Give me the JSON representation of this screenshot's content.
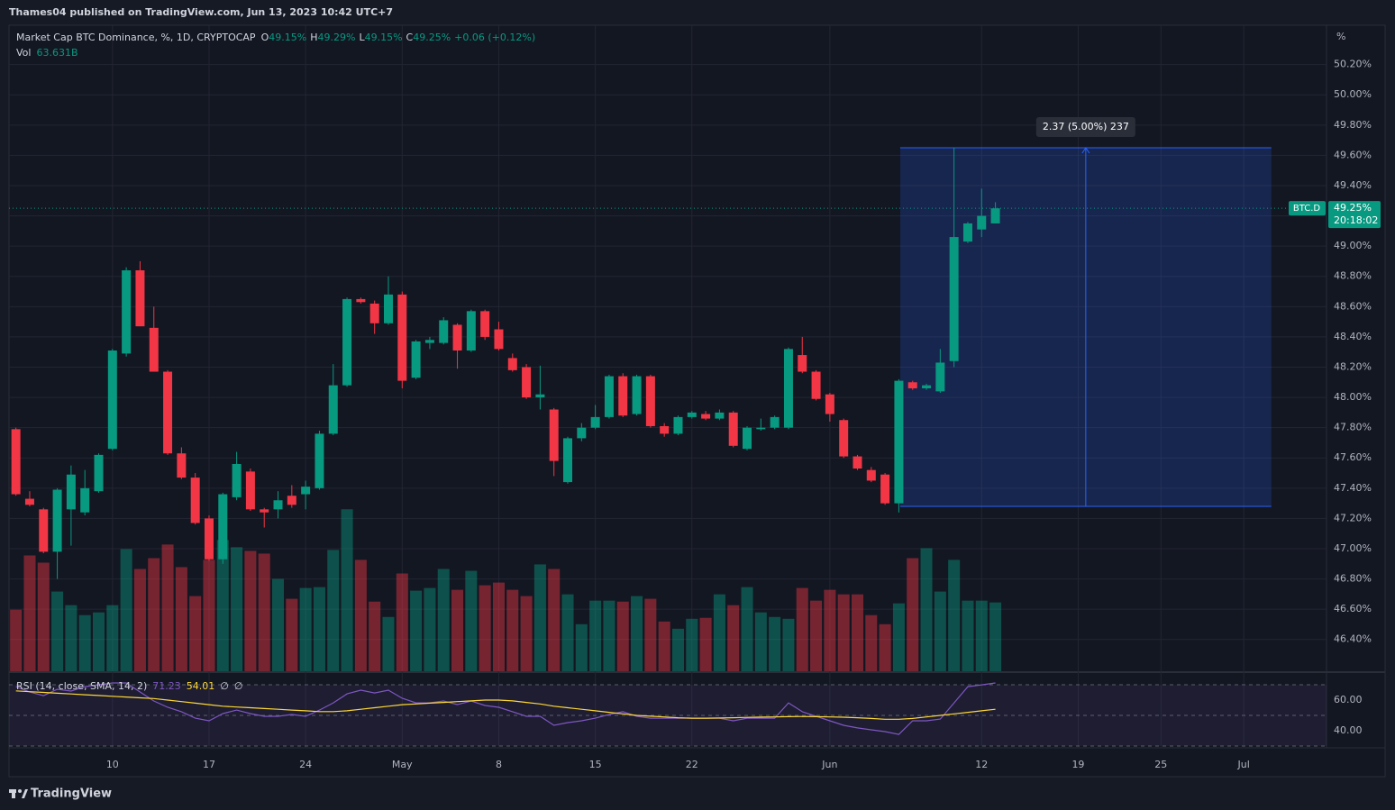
{
  "header": {
    "publisher": "Thames04 published on TradingView.com, Jun 13, 2023 10:42 UTC+7"
  },
  "footer": {
    "brand": "TradingView"
  },
  "chart_data": {
    "type": "candlestick",
    "title": "Market Cap BTC Dominance, %, 1D, CRYPTOCAP",
    "ohlc_legend": [
      {
        "key": "O",
        "value": "49.15%"
      },
      {
        "key": "H",
        "value": "49.29%"
      },
      {
        "key": "L",
        "value": "49.15%"
      },
      {
        "key": "C",
        "value": "49.25%"
      }
    ],
    "change": "+0.06 (+0.12%)",
    "y_unit": "%",
    "open": [
      47.79,
      47.33,
      47.26,
      46.98,
      47.26,
      47.24,
      47.38,
      47.66,
      48.29,
      48.84,
      48.46,
      48.17,
      47.63,
      47.47,
      47.2,
      46.93,
      47.34,
      47.51,
      47.26,
      47.26,
      47.35,
      47.36,
      47.4,
      47.76,
      48.08,
      48.65,
      48.62,
      48.49,
      48.68,
      48.13,
      48.36,
      48.36,
      48.48,
      48.31,
      48.57,
      48.45,
      48.26,
      48.2,
      48.0,
      47.92,
      47.44,
      47.73,
      47.8,
      47.87,
      48.14,
      47.89,
      48.14,
      47.81,
      47.76,
      47.87,
      47.89,
      47.86,
      47.9,
      47.66,
      47.79,
      47.8,
      47.8,
      48.28,
      48.17,
      48.02,
      47.85,
      47.61,
      47.52,
      47.49,
      47.3,
      48.1,
      48.06,
      48.04,
      48.24,
      49.03,
      49.11,
      49.15
    ],
    "high": [
      47.8,
      47.38,
      47.27,
      47.4,
      47.55,
      47.52,
      47.63,
      48.32,
      48.86,
      48.9,
      48.6,
      48.18,
      47.67,
      47.5,
      47.22,
      47.37,
      47.64,
      47.53,
      47.27,
      47.38,
      47.42,
      47.45,
      47.78,
      48.22,
      48.66,
      48.66,
      48.64,
      48.8,
      48.7,
      48.38,
      48.4,
      48.53,
      48.49,
      48.58,
      48.58,
      48.5,
      48.29,
      48.22,
      48.21,
      47.93,
      47.74,
      47.83,
      47.95,
      48.15,
      48.16,
      48.15,
      48.15,
      47.83,
      47.88,
      47.91,
      47.91,
      47.92,
      47.91,
      47.81,
      47.86,
      47.88,
      48.33,
      48.4,
      48.18,
      48.03,
      47.86,
      47.62,
      47.54,
      47.5,
      48.12,
      48.11,
      48.09,
      48.32,
      49.65,
      49.16,
      49.38,
      49.29
    ],
    "low": [
      47.35,
      47.28,
      46.97,
      46.8,
      47.02,
      47.22,
      47.37,
      47.65,
      48.27,
      48.47,
      48.17,
      47.62,
      47.46,
      47.16,
      46.92,
      46.9,
      47.32,
      47.25,
      47.14,
      47.2,
      47.27,
      47.26,
      47.39,
      47.75,
      48.07,
      48.62,
      48.42,
      48.48,
      48.06,
      48.12,
      48.32,
      48.35,
      48.19,
      48.3,
      48.38,
      48.31,
      48.17,
      47.99,
      47.92,
      47.48,
      47.43,
      47.71,
      47.79,
      47.86,
      47.87,
      47.88,
      47.8,
      47.74,
      47.75,
      47.86,
      47.85,
      47.85,
      47.67,
      47.65,
      47.78,
      47.79,
      47.79,
      48.16,
      47.98,
      47.84,
      47.6,
      47.52,
      47.44,
      47.29,
      47.24,
      48.05,
      48.05,
      48.03,
      48.2,
      49.02,
      49.06,
      49.15
    ],
    "close": [
      47.36,
      47.29,
      46.98,
      47.39,
      47.49,
      47.4,
      47.62,
      48.31,
      48.84,
      48.47,
      48.17,
      47.63,
      47.47,
      47.17,
      46.93,
      47.36,
      47.56,
      47.26,
      47.24,
      47.32,
      47.29,
      47.41,
      47.76,
      48.08,
      48.65,
      48.63,
      48.49,
      48.68,
      48.11,
      48.37,
      48.38,
      48.51,
      48.31,
      48.57,
      48.4,
      48.32,
      48.18,
      48.0,
      48.02,
      47.58,
      47.73,
      47.8,
      47.87,
      48.14,
      47.88,
      48.14,
      47.81,
      47.76,
      47.87,
      47.9,
      47.86,
      47.9,
      47.68,
      47.8,
      47.8,
      47.87,
      48.32,
      48.17,
      47.99,
      47.89,
      47.61,
      47.53,
      47.45,
      47.3,
      48.11,
      48.06,
      48.08,
      48.23,
      49.06,
      49.15,
      49.2,
      49.25
    ],
    "up_color": "#089981",
    "down_color": "#f23645",
    "xlim": [
      -0.5,
      95
    ],
    "xticks": [
      {
        "value": 7,
        "label": "10"
      },
      {
        "value": 14,
        "label": "17"
      },
      {
        "value": 21,
        "label": "24"
      },
      {
        "value": 28,
        "label": "May"
      },
      {
        "value": 35,
        "label": "8"
      },
      {
        "value": 42,
        "label": "15"
      },
      {
        "value": 49,
        "label": "22"
      },
      {
        "value": 59,
        "label": "Jun"
      },
      {
        "value": 70,
        "label": "12"
      },
      {
        "value": 77,
        "label": "19"
      },
      {
        "value": 83,
        "label": "25"
      },
      {
        "value": 89,
        "label": "Jul"
      }
    ],
    "ylim": [
      46.19,
      50.46
    ],
    "yticks": [
      {
        "value": 46.4,
        "label": "46.40%"
      },
      {
        "value": 46.6,
        "label": "46.60%"
      },
      {
        "value": 46.8,
        "label": "46.80%"
      },
      {
        "value": 47.0,
        "label": "47.00%"
      },
      {
        "value": 47.2,
        "label": "47.20%"
      },
      {
        "value": 47.4,
        "label": "47.40%"
      },
      {
        "value": 47.6,
        "label": "47.60%"
      },
      {
        "value": 47.8,
        "label": "47.80%"
      },
      {
        "value": 48.0,
        "label": "48.00%"
      },
      {
        "value": 48.2,
        "label": "48.20%"
      },
      {
        "value": 48.4,
        "label": "48.40%"
      },
      {
        "value": 48.6,
        "label": "48.60%"
      },
      {
        "value": 48.8,
        "label": "48.80%"
      },
      {
        "value": 49.0,
        "label": "49.00%"
      },
      {
        "value": 49.2,
        "label": "49.20%"
      },
      {
        "value": 49.4,
        "label": "49.40%"
      },
      {
        "value": 49.6,
        "label": "49.60%"
      },
      {
        "value": 49.8,
        "label": "49.80%"
      },
      {
        "value": 50.0,
        "label": "50.00%"
      },
      {
        "value": 50.2,
        "label": "50.20%"
      }
    ],
    "grid": true,
    "last_price": {
      "symbol": "BTC.D",
      "value": 49.25,
      "label": "49.25%",
      "countdown": "20:18:02"
    },
    "measure": {
      "from": 47.28,
      "to": 49.65,
      "x_start": 64.1,
      "x_end": 91,
      "label": "2.37 (5.00%) 237",
      "color": "#2962ff"
    },
    "volume": {
      "type": "bar",
      "name": "Vol",
      "last_label": "63.631B",
      "values": [
        56.9,
        107.1,
        100.4,
        73.7,
        61.1,
        51.9,
        54.4,
        61.1,
        113.0,
        94.6,
        104.6,
        117.2,
        96.3,
        69.5,
        103.0,
        121.4,
        114.7,
        111.3,
        108.8,
        85.4,
        67.0,
        77.0,
        77.8,
        112.2,
        149.8,
        103.0,
        64.4,
        50.2,
        90.4,
        74.5,
        77.0,
        94.6,
        75.3,
        92.9,
        79.5,
        82.0,
        75.3,
        69.5,
        98.8,
        94.6,
        71.1,
        43.5,
        65.3,
        65.3,
        64.4,
        69.5,
        67.0,
        46.0,
        39.3,
        48.5,
        49.4,
        71.1,
        61.1,
        77.8,
        54.4,
        50.2,
        48.5,
        77.0,
        65.3,
        75.3,
        71.1,
        71.1,
        51.9,
        43.5,
        62.8,
        104.6,
        113.8,
        73.7,
        103.0,
        65.3,
        65.3,
        63.631
      ]
    },
    "rsi": {
      "type": "line",
      "name": "RSI (14, close, SMA, 14, 2)",
      "na_labels": [
        "∅",
        "∅"
      ],
      "ylim": [
        28.8,
        77.1
      ],
      "yticks": [
        {
          "value": 40,
          "label": "40.00"
        },
        {
          "value": 60,
          "label": "60.00"
        }
      ],
      "bands": [
        30,
        50,
        70
      ],
      "series": [
        {
          "color": "#7e57c2",
          "value_label": "71.23",
          "values": [
            68.8,
            65.3,
            62.9,
            67.1,
            65.9,
            68.8,
            70.0,
            71.2,
            71.2,
            65.3,
            59.4,
            55.3,
            52.4,
            48.2,
            46.5,
            51.2,
            53.5,
            51.2,
            49.4,
            49.4,
            50.6,
            49.4,
            53.5,
            58.2,
            64.1,
            66.5,
            64.7,
            66.5,
            61.2,
            58.2,
            58.2,
            59.4,
            57.1,
            59.4,
            56.5,
            55.3,
            52.4,
            49.4,
            49.4,
            43.5,
            45.3,
            46.5,
            48.2,
            50.6,
            52.4,
            49.4,
            48.2,
            48.2,
            48.2,
            48.2,
            48.2,
            48.2,
            46.5,
            48.2,
            48.2,
            48.2,
            58.2,
            52.4,
            49.4,
            46.5,
            43.5,
            41.8,
            40.6,
            39.4,
            37.6,
            46.5,
            46.5,
            47.6,
            58.2,
            68.8,
            70.0,
            71.23
          ]
        },
        {
          "color": "#fdd835",
          "value_label": "54.01",
          "values": [
            66,
            65.5,
            65,
            64.5,
            64,
            63.5,
            63,
            62.5,
            62,
            61.5,
            61,
            60,
            59,
            58,
            57,
            56,
            55.5,
            55,
            54.5,
            54,
            53.5,
            53,
            52.5,
            52.5,
            53,
            54,
            55,
            56,
            57,
            57.5,
            58,
            58.5,
            59,
            59.5,
            60,
            60,
            59.5,
            58.5,
            57.5,
            56,
            55,
            54,
            53,
            52,
            51,
            50,
            49.5,
            49,
            48.5,
            48.2,
            48.2,
            48.3,
            48.5,
            48.7,
            48.9,
            49,
            49.2,
            49.3,
            49.2,
            49,
            48.8,
            48.5,
            48,
            47.5,
            47.5,
            48,
            49,
            50,
            51,
            52,
            53,
            54.01
          ]
        }
      ]
    }
  }
}
